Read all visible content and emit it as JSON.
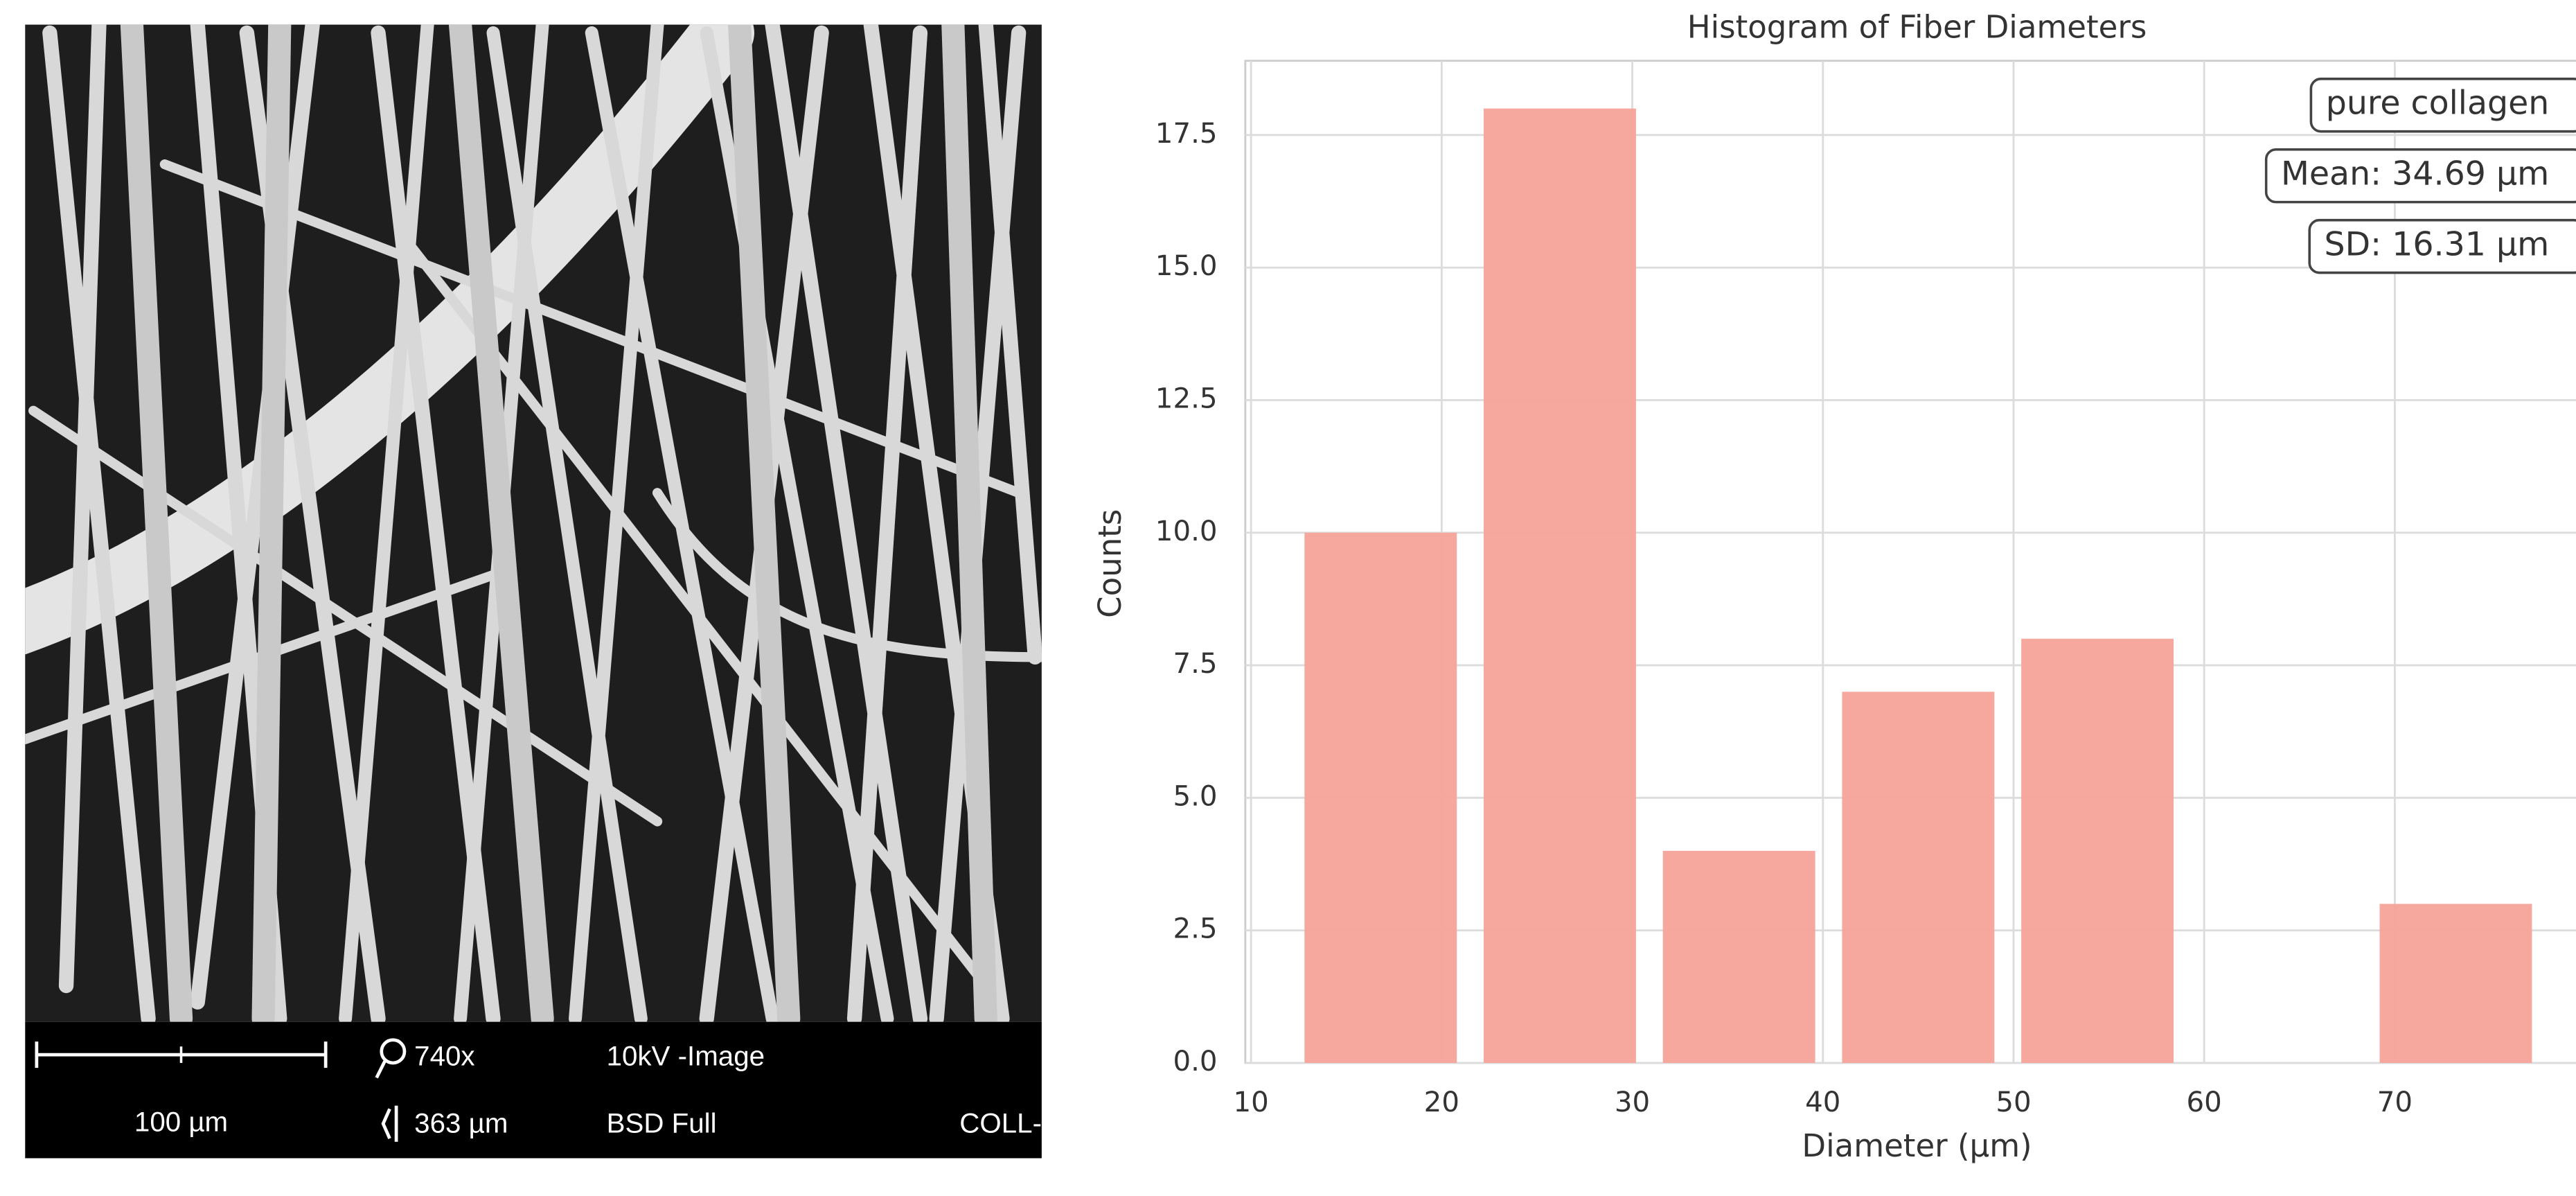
{
  "sem_panel": {
    "scale_bar": "100 µm",
    "magnification": "740x",
    "field_width": "363 µm",
    "voltage": "10kV -Image",
    "detector": "BSD Full",
    "sample": "COLL-ETC"
  },
  "chart_data": {
    "type": "histogram",
    "title": "Histogram of Fiber Diameters",
    "xlabel": "Diameter (µm)",
    "ylabel": "Counts",
    "bins": [
      12.1,
      21.5,
      30.9,
      40.3,
      49.7,
      59.1,
      68.5,
      77.9
    ],
    "counts": [
      10,
      18,
      4,
      7,
      8,
      0,
      3
    ],
    "color": "#f7a399",
    "xlim": [
      9.7,
      78.1
    ],
    "ylim": [
      0,
      18.9
    ],
    "xticks": [
      10,
      20,
      30,
      40,
      50,
      60,
      70
    ],
    "yticks": [
      {
        "value": 0,
        "label": "0.0"
      },
      2.5,
      {
        "value": 5,
        "label": "5.0"
      },
      7.5,
      {
        "value": 10,
        "label": "10.0"
      },
      12.5,
      {
        "value": 15,
        "label": "15.0"
      },
      17.5
    ],
    "grid": true,
    "annotations": [
      "pure collagen",
      "Mean: 34.69 µm",
      "SD: 16.31 µm"
    ]
  }
}
